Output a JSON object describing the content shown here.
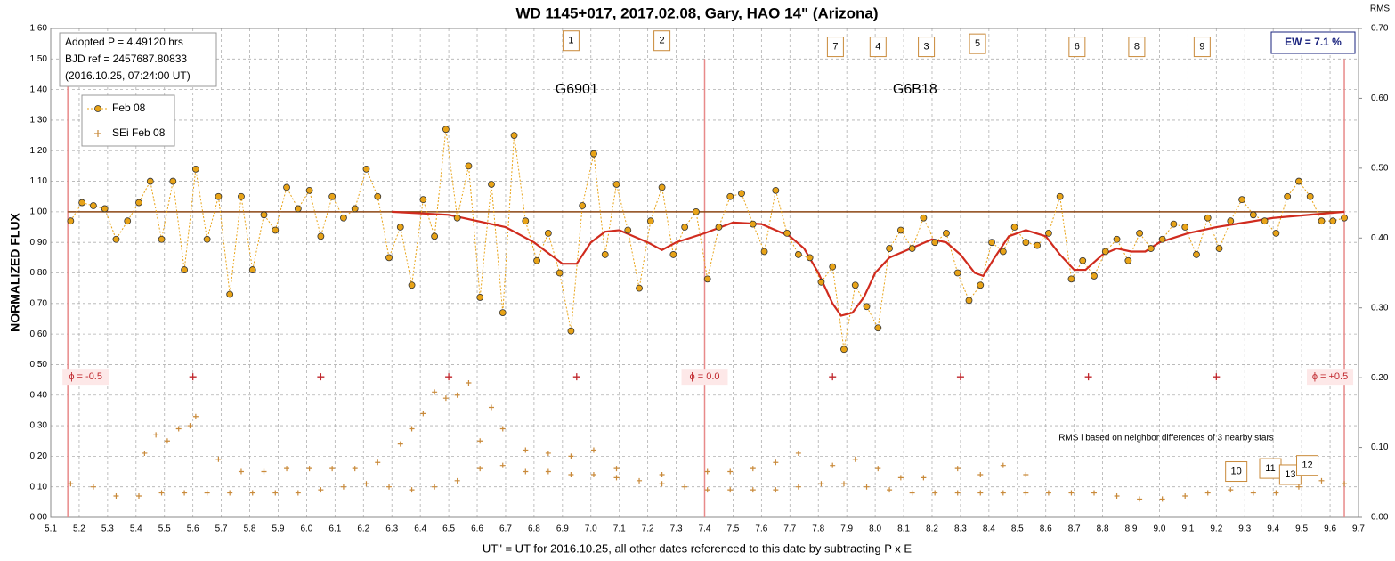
{
  "chart_data": {
    "type": "scatter",
    "title": "WD 1145+017, 2017.02.08, Gary, HAO 14\" (Arizona)",
    "ylabel": "NORMALIZED FLUX",
    "y2label": "RMS",
    "xlabel": "UT\" = UT for 2016.10.25, all other dates referenced to this date by subtracting P x E",
    "info": [
      "Adopted P = 4.49120  hrs",
      "BJD ref = 2457687.80833",
      "(2016.10.25,  07:24:00  UT)"
    ],
    "ew_label": "EW = 7.1 %",
    "note": "RMS i based on neighbor differences of 3 nearby stars",
    "xlim": [
      5.1,
      9.7
    ],
    "ylim": [
      0,
      1.6
    ],
    "y2lim": [
      0,
      0.7
    ],
    "grid": true,
    "xticks": [
      5.1,
      5.2,
      5.3,
      5.4,
      5.5,
      5.6,
      5.7,
      5.8,
      5.9,
      {
        "value": 6,
        "label": "6.0"
      },
      6.1,
      6.2,
      6.3,
      6.4,
      6.5,
      6.6,
      6.7,
      6.8,
      6.9,
      {
        "value": 7,
        "label": "7.0"
      },
      7.1,
      7.2,
      7.3,
      7.4,
      7.5,
      7.6,
      7.7,
      7.8,
      7.9,
      {
        "value": 8,
        "label": "8.0"
      },
      8.1,
      8.2,
      8.3,
      8.4,
      8.5,
      8.6,
      8.7,
      8.8,
      8.9,
      {
        "value": 9,
        "label": "9.0"
      },
      9.1,
      9.2,
      9.3,
      9.4,
      9.5,
      9.6,
      9.7
    ],
    "yticks": [
      {
        "value": 0,
        "label": "0.00"
      },
      {
        "value": 0.1,
        "label": "0.10"
      },
      {
        "value": 0.2,
        "label": "0.20"
      },
      {
        "value": 0.3,
        "label": "0.30"
      },
      {
        "value": 0.4,
        "label": "0.40"
      },
      {
        "value": 0.5,
        "label": "0.50"
      },
      {
        "value": 0.6,
        "label": "0.60"
      },
      {
        "value": 0.7,
        "label": "0.70"
      },
      {
        "value": 0.8,
        "label": "0.80"
      },
      {
        "value": 0.9,
        "label": "0.90"
      },
      {
        "value": 1,
        "label": "1.00"
      },
      {
        "value": 1.1,
        "label": "1.10"
      },
      {
        "value": 1.2,
        "label": "1.20"
      },
      {
        "value": 1.3,
        "label": "1.30"
      },
      {
        "value": 1.4,
        "label": "1.40"
      },
      {
        "value": 1.5,
        "label": "1.50"
      },
      {
        "value": 1.6,
        "label": "1.60"
      }
    ],
    "y2ticks": [
      {
        "value": 0,
        "label": "0.00"
      },
      {
        "value": 0.1,
        "label": "0.10"
      },
      {
        "value": 0.2,
        "label": "0.20"
      },
      {
        "value": 0.3,
        "label": "0.30"
      },
      {
        "value": 0.4,
        "label": "0.40"
      },
      {
        "value": 0.5,
        "label": "0.50"
      },
      {
        "value": 0.6,
        "label": "0.60"
      },
      {
        "value": 0.7,
        "label": "0.70"
      }
    ],
    "baseline": 1,
    "series": [
      {
        "name": "Feb 08",
        "color": "#e8a317",
        "x": [
          5.17,
          5.21,
          5.25,
          5.29,
          5.33,
          5.37,
          5.41,
          5.45,
          5.49,
          5.53,
          5.57,
          5.61,
          5.65,
          5.69,
          5.73,
          5.77,
          5.81,
          5.85,
          5.89,
          5.93,
          5.97,
          6.01,
          6.05,
          6.09,
          6.13,
          6.17,
          6.21,
          6.25,
          6.29,
          6.33,
          6.37,
          6.41,
          6.45,
          6.49,
          6.53,
          6.57,
          6.61,
          6.65,
          6.69,
          6.73,
          6.77,
          6.81,
          6.85,
          6.89,
          6.93,
          6.97,
          7.01,
          7.05,
          7.09,
          7.13,
          7.17,
          7.21,
          7.25,
          7.29,
          7.33,
          7.37,
          7.41,
          7.45,
          7.49,
          7.53,
          7.57,
          7.61,
          7.65,
          7.69,
          7.73,
          7.77,
          7.81,
          7.85,
          7.89,
          7.93,
          7.97,
          8.01,
          8.05,
          8.09,
          8.13,
          8.17,
          8.21,
          8.25,
          8.29,
          8.33,
          8.37,
          8.41,
          8.45,
          8.49,
          8.53,
          8.57,
          8.61,
          8.65,
          8.69,
          8.73,
          8.77,
          8.81,
          8.85,
          8.89,
          8.93,
          8.97,
          9.01,
          9.05,
          9.09,
          9.13,
          9.17,
          9.21,
          9.25,
          9.29,
          9.33,
          9.37,
          9.41,
          9.45,
          9.49,
          9.53,
          9.57,
          9.61,
          9.65
        ],
        "values": [
          0.97,
          1.03,
          1.02,
          1.01,
          0.91,
          0.97,
          1.03,
          1.1,
          0.91,
          1.1,
          0.81,
          1.14,
          0.91,
          1.05,
          0.73,
          1.05,
          0.81,
          0.99,
          0.94,
          1.08,
          1.01,
          1.07,
          0.92,
          1.05,
          0.98,
          1.01,
          1.14,
          1.05,
          0.85,
          0.95,
          0.76,
          1.04,
          0.92,
          1.27,
          0.98,
          1.15,
          0.72,
          1.09,
          0.67,
          1.25,
          0.97,
          0.84,
          0.93,
          0.8,
          0.61,
          1.02,
          1.19,
          0.86,
          1.09,
          0.94,
          0.75,
          0.97,
          1.08,
          0.86,
          0.95,
          1.0,
          0.78,
          0.95,
          1.05,
          1.06,
          0.96,
          0.87,
          1.07,
          0.93,
          0.86,
          0.85,
          0.77,
          0.82,
          0.55,
          0.76,
          0.69,
          0.62,
          0.88,
          0.94,
          0.88,
          0.98,
          0.9,
          0.93,
          0.8,
          0.71,
          0.76,
          0.9,
          0.87,
          0.95,
          0.9,
          0.89,
          0.93,
          1.05,
          0.78,
          0.84,
          0.79,
          0.87,
          0.91,
          0.84,
          0.93,
          0.88,
          0.91,
          0.96,
          0.95,
          0.86,
          0.98,
          0.88,
          0.97,
          1.04,
          0.99,
          0.97,
          0.93,
          1.05,
          1.1,
          1.05,
          0.97,
          0.97,
          0.98
        ]
      },
      {
        "name": "SEi Feb 08",
        "color": "#c98a3a",
        "x": [
          5.17,
          5.25,
          5.33,
          5.41,
          5.49,
          5.57,
          5.65,
          5.73,
          5.81,
          5.89,
          5.97,
          6.05,
          6.13,
          6.21,
          6.29,
          6.37,
          6.45,
          6.53,
          6.61,
          6.69,
          6.77,
          6.85,
          6.93,
          7.01,
          7.09,
          7.17,
          7.25,
          7.33,
          7.41,
          7.49,
          7.57,
          7.65,
          7.73,
          7.81,
          7.89,
          7.97,
          8.05,
          8.13,
          8.21,
          8.29,
          8.37,
          8.45,
          8.53,
          8.61,
          8.69,
          8.77,
          8.85,
          8.93,
          9.01,
          9.09,
          9.17,
          9.25,
          9.33,
          9.41,
          9.49,
          9.57,
          9.65,
          5.43,
          5.47,
          5.51,
          5.55,
          5.59,
          5.61,
          5.69,
          5.77,
          5.85,
          5.93,
          6.01,
          6.09,
          6.17,
          6.25,
          6.33,
          6.37,
          6.41,
          6.45,
          6.49,
          6.53,
          6.57,
          6.61,
          6.65,
          6.69,
          6.77,
          6.85,
          6.93,
          7.01,
          7.09,
          7.25,
          7.41,
          7.49,
          7.57,
          7.65,
          7.73,
          7.85,
          7.93,
          8.01,
          8.09,
          8.17,
          8.29,
          8.37,
          8.45,
          8.53
        ],
        "values": [
          0.11,
          0.1,
          0.07,
          0.07,
          0.08,
          0.08,
          0.08,
          0.08,
          0.08,
          0.08,
          0.08,
          0.09,
          0.1,
          0.11,
          0.1,
          0.09,
          0.1,
          0.12,
          0.16,
          0.17,
          0.15,
          0.15,
          0.14,
          0.14,
          0.13,
          0.12,
          0.11,
          0.1,
          0.09,
          0.09,
          0.09,
          0.09,
          0.1,
          0.11,
          0.11,
          0.1,
          0.09,
          0.08,
          0.08,
          0.08,
          0.08,
          0.08,
          0.08,
          0.08,
          0.08,
          0.08,
          0.07,
          0.06,
          0.06,
          0.07,
          0.08,
          0.09,
          0.08,
          0.08,
          0.1,
          0.12,
          0.11,
          0.21,
          0.27,
          0.25,
          0.29,
          0.3,
          0.33,
          0.19,
          0.15,
          0.15,
          0.16,
          0.16,
          0.16,
          0.16,
          0.18,
          0.24,
          0.29,
          0.34,
          0.41,
          0.39,
          0.4,
          0.44,
          0.25,
          0.36,
          0.29,
          0.22,
          0.21,
          0.2,
          0.22,
          0.16,
          0.14,
          0.15,
          0.15,
          0.16,
          0.18,
          0.21,
          0.17,
          0.19,
          0.16,
          0.13,
          0.13,
          0.16,
          0.14,
          0.17,
          0.14
        ]
      }
    ],
    "model": {
      "color": "#d02b1e",
      "x": [
        6.3,
        6.5,
        6.7,
        6.8,
        6.9,
        6.95,
        7.0,
        7.05,
        7.1,
        7.2,
        7.25,
        7.3,
        7.4,
        7.5,
        7.6,
        7.7,
        7.75,
        7.8,
        7.85,
        7.88,
        7.92,
        7.96,
        8.0,
        8.05,
        8.1,
        8.15,
        8.2,
        8.25,
        8.3,
        8.35,
        8.38,
        8.42,
        8.47,
        8.53,
        8.6,
        8.65,
        8.7,
        8.74,
        8.8,
        8.85,
        8.9,
        8.95,
        9.0,
        9.1,
        9.2,
        9.4,
        9.65
      ],
      "values": [
        1.0,
        0.99,
        0.95,
        0.9,
        0.83,
        0.83,
        0.9,
        0.935,
        0.94,
        0.9,
        0.875,
        0.9,
        0.93,
        0.965,
        0.96,
        0.92,
        0.88,
        0.8,
        0.7,
        0.66,
        0.67,
        0.72,
        0.8,
        0.85,
        0.87,
        0.89,
        0.91,
        0.9,
        0.86,
        0.8,
        0.79,
        0.85,
        0.92,
        0.94,
        0.92,
        0.86,
        0.81,
        0.81,
        0.86,
        0.88,
        0.87,
        0.87,
        0.9,
        0.93,
        0.95,
        0.98,
        1.0
      ]
    },
    "phase_markers": {
      "color": "#c0272d",
      "x": [
        5.6,
        6.05,
        6.5,
        6.95,
        7.85,
        8.3,
        8.75,
        9.2
      ],
      "y": 0.46
    },
    "phases": [
      {
        "x": 5.16,
        "label": "ϕ = -0.5"
      },
      {
        "x": 7.4,
        "label": "ϕ = 0.0"
      },
      {
        "x": 9.65,
        "label": "ϕ = +0.5"
      }
    ],
    "groups": [
      {
        "x": 6.95,
        "y": 1.4,
        "label": "G6901"
      },
      {
        "x": 8.14,
        "y": 1.4,
        "label": "G6B18"
      }
    ],
    "boxes": [
      {
        "x": 6.93,
        "y": 1.56,
        "label": "1"
      },
      {
        "x": 7.25,
        "y": 1.56,
        "label": "2"
      },
      {
        "x": 7.86,
        "y": 1.54,
        "label": "7"
      },
      {
        "x": 8.01,
        "y": 1.54,
        "label": "4"
      },
      {
        "x": 8.18,
        "y": 1.54,
        "label": "3"
      },
      {
        "x": 8.36,
        "y": 1.55,
        "label": "5"
      },
      {
        "x": 8.71,
        "y": 1.54,
        "label": "6"
      },
      {
        "x": 8.92,
        "y": 1.54,
        "label": "8"
      },
      {
        "x": 9.15,
        "y": 1.54,
        "label": "9"
      },
      {
        "x": 9.27,
        "y": 0.15,
        "label": "10"
      },
      {
        "x": 9.39,
        "y": 0.16,
        "label": "11"
      },
      {
        "x": 9.46,
        "y": 0.14,
        "label": "13"
      },
      {
        "x": 9.52,
        "y": 0.17,
        "label": "12"
      }
    ]
  }
}
